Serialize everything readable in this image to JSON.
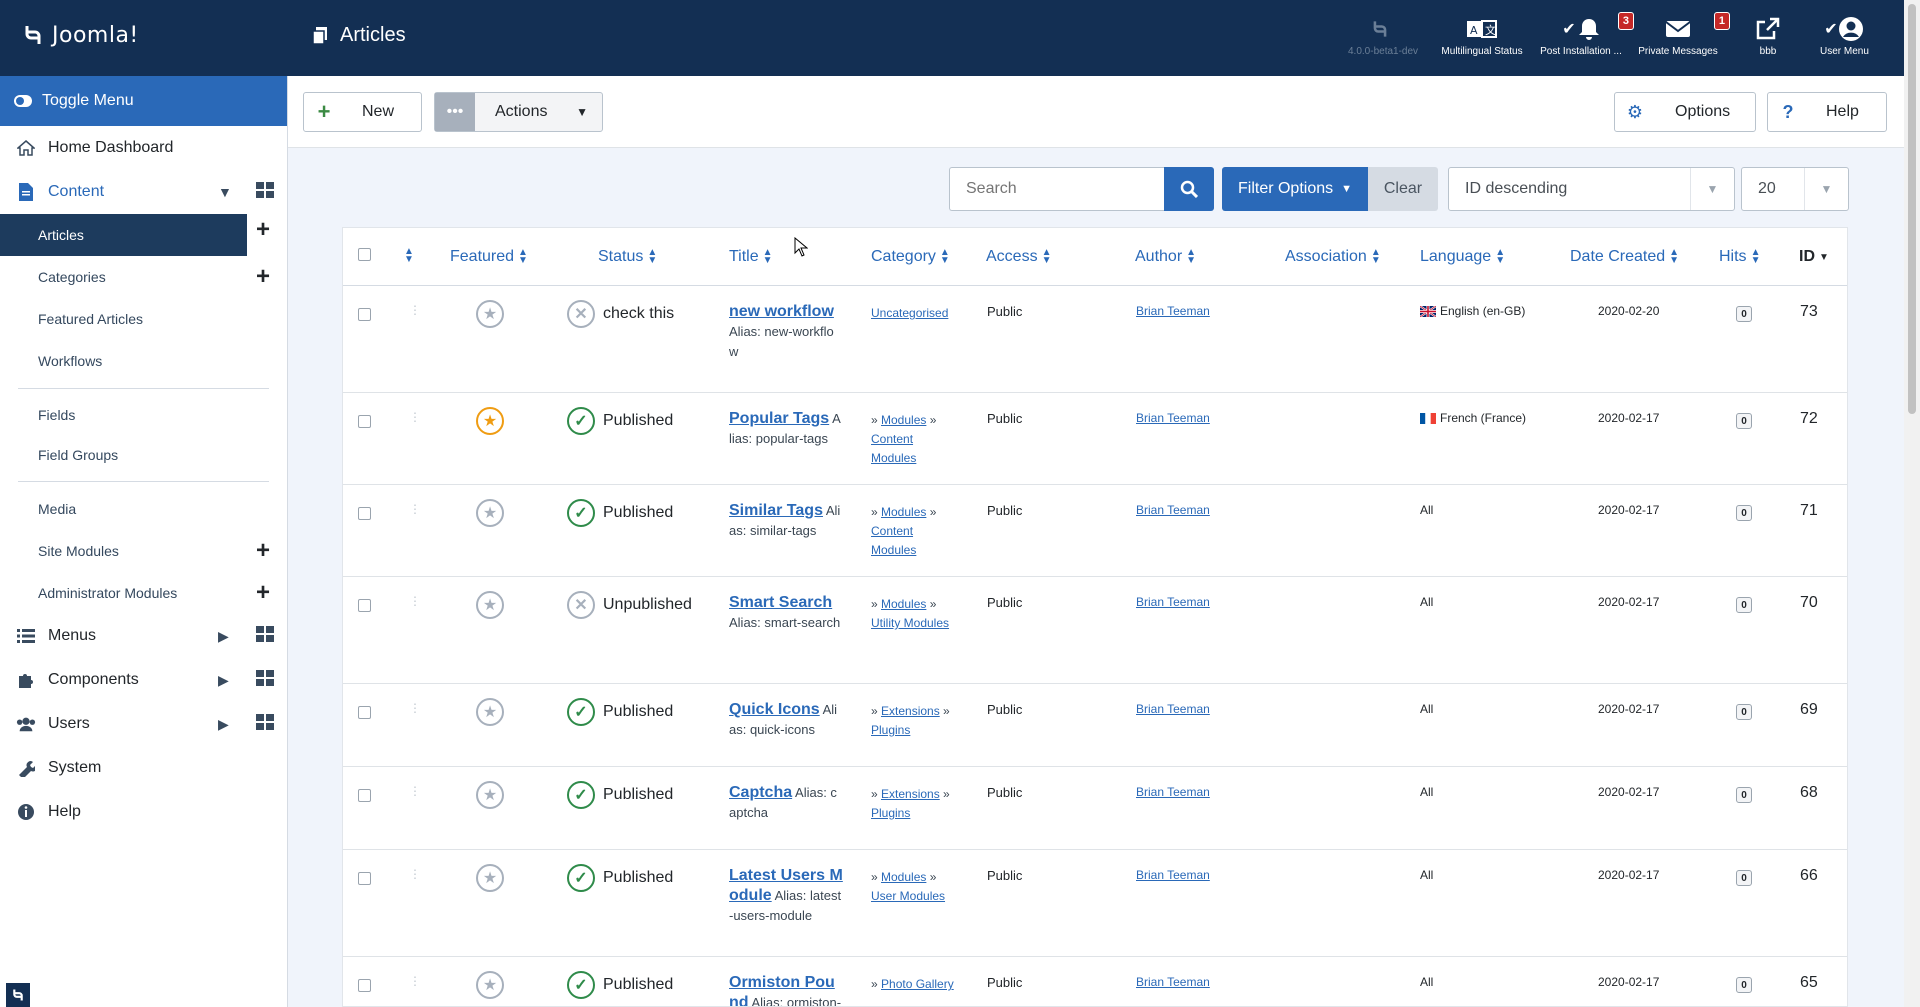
{
  "brand": "Joomla!",
  "header": {
    "title": "Articles",
    "items": [
      {
        "label": "4.0.0-beta1-dev",
        "icon": "joomla-icon"
      },
      {
        "label": "Multilingual Status",
        "icon": "language-icon"
      },
      {
        "label": "Post Installation ...",
        "icon": "bell-icon",
        "badge": "3"
      },
      {
        "label": "Private Messages",
        "icon": "envelope-icon",
        "badge": "1"
      },
      {
        "label": "bbb",
        "icon": "external-link-icon"
      },
      {
        "label": "User Menu",
        "icon": "user-icon"
      }
    ]
  },
  "sidebar": {
    "toggle": "Toggle Menu",
    "home": "Home Dashboard",
    "content": "Content",
    "content_items": [
      "Articles",
      "Categories",
      "Featured Articles",
      "Workflows",
      "Fields",
      "Field Groups",
      "Media",
      "Site Modules",
      "Administrator Modules"
    ],
    "menus": "Menus",
    "components": "Components",
    "users": "Users",
    "system": "System",
    "help": "Help"
  },
  "toolbar": {
    "new_label": "New",
    "actions_label": "Actions",
    "options_label": "Options",
    "help_label": "Help"
  },
  "filters": {
    "search_placeholder": "Search",
    "filter_options": "Filter Options",
    "clear": "Clear",
    "ordering": "ID descending",
    "limit": "20"
  },
  "columns": [
    "Featured",
    "Status",
    "Title",
    "Category",
    "Access",
    "Author",
    "Association",
    "Language",
    "Date Created",
    "Hits",
    "ID"
  ],
  "rows": [
    {
      "featured": false,
      "status": "check this",
      "published": false,
      "title": "new workflow",
      "alias": "Alias: new-workflow",
      "category": [
        "Uncategorised"
      ],
      "cat_prefix": false,
      "access": "Public",
      "author": "Brian Teeman",
      "language": "English (en-GB)",
      "flag": "gb",
      "date": "2020-02-20",
      "hits": "0",
      "id": "73"
    },
    {
      "featured": true,
      "status": "Published",
      "published": true,
      "title": "Popular Tags",
      "alias": "Alias: popular-tags",
      "category": [
        "Modules",
        "Content Modules"
      ],
      "cat_prefix": true,
      "access": "Public",
      "author": "Brian Teeman",
      "language": "French (France)",
      "flag": "fr",
      "date": "2020-02-17",
      "hits": "0",
      "id": "72"
    },
    {
      "featured": false,
      "status": "Published",
      "published": true,
      "title": "Similar Tags",
      "alias": "Alias: similar-tags",
      "category": [
        "Modules",
        "Content Modules"
      ],
      "cat_prefix": true,
      "access": "Public",
      "author": "Brian Teeman",
      "language": "All",
      "flag": "",
      "date": "2020-02-17",
      "hits": "0",
      "id": "71"
    },
    {
      "featured": false,
      "status": "Unpublished",
      "published": false,
      "title": "Smart Search",
      "alias": "Alias: smart-search",
      "category": [
        "Modules",
        "Utility Modules"
      ],
      "cat_prefix": true,
      "access": "Public",
      "author": "Brian Teeman",
      "language": "All",
      "flag": "",
      "date": "2020-02-17",
      "hits": "0",
      "id": "70"
    },
    {
      "featured": false,
      "status": "Published",
      "published": true,
      "title": "Quick Icons",
      "alias": "Alias: quick-icons",
      "category": [
        "Extensions",
        "Plugins"
      ],
      "cat_prefix": true,
      "access": "Public",
      "author": "Brian Teeman",
      "language": "All",
      "flag": "",
      "date": "2020-02-17",
      "hits": "0",
      "id": "69"
    },
    {
      "featured": false,
      "status": "Published",
      "published": true,
      "title": "Captcha",
      "alias": "Alias: captcha",
      "category": [
        "Extensions",
        "Plugins"
      ],
      "cat_prefix": true,
      "access": "Public",
      "author": "Brian Teeman",
      "language": "All",
      "flag": "",
      "date": "2020-02-17",
      "hits": "0",
      "id": "68"
    },
    {
      "featured": false,
      "status": "Published",
      "published": true,
      "title": "Latest Users Module",
      "alias": "Alias: latest-users-module",
      "category": [
        "Modules",
        "User Modules"
      ],
      "cat_prefix": true,
      "access": "Public",
      "author": "Brian Teeman",
      "language": "All",
      "flag": "",
      "date": "2020-02-17",
      "hits": "0",
      "id": "66"
    },
    {
      "featured": false,
      "status": "Published",
      "published": true,
      "title": "Ormiston Pound",
      "alias": "Alias: ormiston-pound",
      "category": [
        "Photo Gallery"
      ],
      "cat_prefix": true,
      "access": "Public",
      "author": "Brian Teeman",
      "language": "All",
      "flag": "",
      "date": "2020-02-17",
      "hits": "0",
      "id": "65"
    }
  ]
}
